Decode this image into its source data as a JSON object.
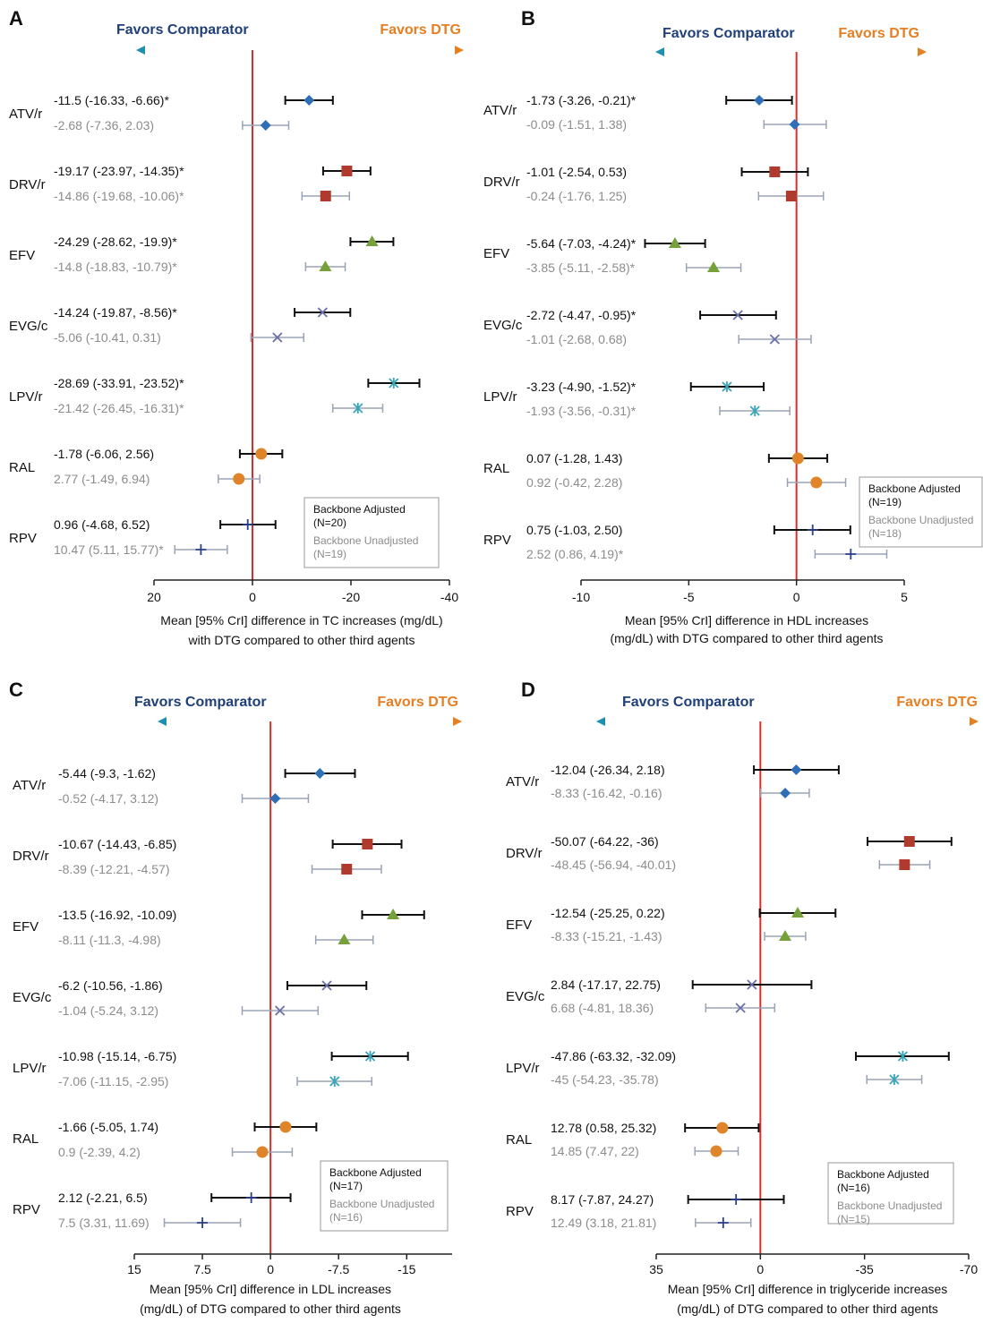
{
  "colors": {
    "favors_comparator": "#1f3f7a",
    "favors_dtg": "#e67e22",
    "ref_line": "#d32f2f",
    "axis": "#222222",
    "adjusted_text": "#111111",
    "unadjusted_text": "#8c8c8c",
    "adjusted_bar": "#111111",
    "unadjusted_bar": "#9aa3b5",
    "legend_border": "#999999"
  },
  "chart_data": [
    {
      "panel_label": "A",
      "type": "forest",
      "favors_left": "Favors Comparator",
      "favors_right": "Favors DTG",
      "xlim": [
        20,
        -40
      ],
      "xticks": [
        20,
        0,
        -20,
        -40
      ],
      "xtick_labels": [
        "20",
        "0",
        "-20",
        "-40"
      ],
      "xlabel_line1": "Mean [95% CrI] difference in TC increases (mg/dL)",
      "xlabel_line2": "with DTG compared to other third agents",
      "legend": {
        "adjusted_label": "Backbone Adjusted",
        "adjusted_n": "(N=20)",
        "unadjusted_label": "Backbone Unadjusted",
        "unadjusted_n": "(N=19)"
      },
      "rows": [
        {
          "drug": "ATV/r",
          "marker": "diamond",
          "color": "#2e6fb8",
          "adjusted": {
            "est": -11.5,
            "lo": -16.33,
            "hi": -6.66,
            "label": "-11.5 (-16.33, -6.66)*"
          },
          "unadjusted": {
            "est": -2.68,
            "lo": -7.36,
            "hi": 2.03,
            "label": "-2.68 (-7.36, 2.03)"
          }
        },
        {
          "drug": "DRV/r",
          "marker": "square",
          "color": "#b03a2e",
          "adjusted": {
            "est": -19.17,
            "lo": -23.97,
            "hi": -14.35,
            "label": "-19.17 (-23.97, -14.35)*"
          },
          "unadjusted": {
            "est": -14.86,
            "lo": -19.68,
            "hi": -10.06,
            "label": "-14.86 (-19.68, -10.06)*"
          }
        },
        {
          "drug": "EFV",
          "marker": "triangle",
          "color": "#76a03a",
          "adjusted": {
            "est": -24.29,
            "lo": -28.62,
            "hi": -19.9,
            "label": "-24.29 (-28.62, -19.9)*"
          },
          "unadjusted": {
            "est": -14.8,
            "lo": -18.83,
            "hi": -10.79,
            "label": "-14.8 (-18.83, -10.79)*"
          }
        },
        {
          "drug": "EVG/c",
          "marker": "x",
          "color": "#6a6fa8",
          "adjusted": {
            "est": -14.24,
            "lo": -19.87,
            "hi": -8.56,
            "label": "-14.24 (-19.87, -8.56)*"
          },
          "unadjusted": {
            "est": -5.06,
            "lo": -10.41,
            "hi": 0.31,
            "label": "-5.06 (-10.41, 0.31)"
          }
        },
        {
          "drug": "LPV/r",
          "marker": "star",
          "color": "#3aa5b8",
          "adjusted": {
            "est": -28.69,
            "lo": -33.91,
            "hi": -23.52,
            "label": "-28.69 (-33.91, -23.52)*"
          },
          "unadjusted": {
            "est": -21.42,
            "lo": -26.45,
            "hi": -16.31,
            "label": "-21.42 (-26.45, -16.31)*"
          }
        },
        {
          "drug": "RAL",
          "marker": "circle",
          "color": "#e0842a",
          "adjusted": {
            "est": -1.78,
            "lo": -6.06,
            "hi": 2.56,
            "label": "-1.78 (-6.06, 2.56)"
          },
          "unadjusted": {
            "est": 2.77,
            "lo": -1.49,
            "hi": 6.94,
            "label": "2.77 (-1.49, 6.94)"
          }
        },
        {
          "drug": "RPV",
          "marker": "plus",
          "color": "#2a3f8f",
          "adjusted": {
            "est": 0.96,
            "lo": -4.68,
            "hi": 6.52,
            "label": "0.96 (-4.68, 6.52)"
          },
          "unadjusted": {
            "est": 10.47,
            "lo": 5.11,
            "hi": 15.77,
            "label": "10.47 (5.11, 15.77)*"
          }
        }
      ]
    },
    {
      "panel_label": "B",
      "type": "forest",
      "favors_left": "Favors Comparator",
      "favors_right": "Favors DTG",
      "xlim": [
        -10,
        5
      ],
      "xticks": [
        -10,
        -5,
        0,
        5
      ],
      "xtick_labels": [
        "-10",
        "-5",
        "0",
        "5"
      ],
      "xlabel_line1": "Mean [95% CrI] difference in HDL increases",
      "xlabel_line2": "(mg/dL) with DTG compared to other third agents",
      "legend": {
        "adjusted_label": "Backbone Adjusted",
        "adjusted_n": "(N=19)",
        "unadjusted_label": "Backbone Unadjusted",
        "unadjusted_n": "(N=18)"
      },
      "rows": [
        {
          "drug": "ATV/r",
          "marker": "diamond",
          "color": "#2e6fb8",
          "adjusted": {
            "est": -1.73,
            "lo": -3.26,
            "hi": -0.21,
            "label": "-1.73 (-3.26, -0.21)*"
          },
          "unadjusted": {
            "est": -0.09,
            "lo": -1.51,
            "hi": 1.38,
            "label": "-0.09 (-1.51, 1.38)"
          }
        },
        {
          "drug": "DRV/r",
          "marker": "square",
          "color": "#b03a2e",
          "adjusted": {
            "est": -1.01,
            "lo": -2.54,
            "hi": 0.53,
            "label": "-1.01 (-2.54, 0.53)"
          },
          "unadjusted": {
            "est": -0.24,
            "lo": -1.76,
            "hi": 1.25,
            "label": "-0.24 (-1.76, 1.25)"
          }
        },
        {
          "drug": "EFV",
          "marker": "triangle",
          "color": "#76a03a",
          "adjusted": {
            "est": -5.64,
            "lo": -7.03,
            "hi": -4.24,
            "label": "-5.64 (-7.03, -4.24)*"
          },
          "unadjusted": {
            "est": -3.85,
            "lo": -5.11,
            "hi": -2.58,
            "label": "-3.85 (-5.11, -2.58)*"
          }
        },
        {
          "drug": "EVG/c",
          "marker": "x",
          "color": "#6a6fa8",
          "adjusted": {
            "est": -2.72,
            "lo": -4.47,
            "hi": -0.95,
            "label": "-2.72 (-4.47, -0.95)*"
          },
          "unadjusted": {
            "est": -1.01,
            "lo": -2.68,
            "hi": 0.68,
            "label": "-1.01 (-2.68, 0.68)"
          }
        },
        {
          "drug": "LPV/r",
          "marker": "star",
          "color": "#3aa5b8",
          "adjusted": {
            "est": -3.23,
            "lo": -4.9,
            "hi": -1.52,
            "label": "-3.23 (-4.90, -1.52)*"
          },
          "unadjusted": {
            "est": -1.93,
            "lo": -3.56,
            "hi": -0.31,
            "label": "-1.93 (-3.56, -0.31)*"
          }
        },
        {
          "drug": "RAL",
          "marker": "circle",
          "color": "#e0842a",
          "adjusted": {
            "est": 0.07,
            "lo": -1.28,
            "hi": 1.43,
            "label": "0.07 (-1.28, 1.43)"
          },
          "unadjusted": {
            "est": 0.92,
            "lo": -0.42,
            "hi": 2.28,
            "label": "0.92 (-0.42, 2.28)"
          }
        },
        {
          "drug": "RPV",
          "marker": "plus",
          "color": "#2a3f8f",
          "adjusted": {
            "est": 0.75,
            "lo": -1.03,
            "hi": 2.5,
            "label": "0.75 (-1.03, 2.50)"
          },
          "unadjusted": {
            "est": 2.52,
            "lo": 0.86,
            "hi": 4.19,
            "label": "2.52 (0.86, 4.19)*"
          }
        }
      ]
    },
    {
      "panel_label": "C",
      "type": "forest",
      "favors_left": "Favors Comparator",
      "favors_right": "Favors DTG",
      "xlim": [
        15,
        -20
      ],
      "xticks": [
        15,
        7.5,
        0,
        -7.5,
        -15
      ],
      "xtick_labels": [
        "15",
        "7.5",
        "0",
        "-7.5",
        "-15"
      ],
      "xlabel_line1": "Mean [95% CrI] difference in LDL increases",
      "xlabel_line2": "(mg/dL) of DTG compared to other third agents",
      "legend": {
        "adjusted_label": "Backbone Adjusted",
        "adjusted_n": "(N=17)",
        "unadjusted_label": "Backbone Unadjusted",
        "unadjusted_n": "(N=16)"
      },
      "rows": [
        {
          "drug": "ATV/r",
          "marker": "diamond",
          "color": "#2e6fb8",
          "adjusted": {
            "est": -5.44,
            "lo": -9.3,
            "hi": -1.62,
            "label": "-5.44 (-9.3, -1.62)"
          },
          "unadjusted": {
            "est": -0.52,
            "lo": -4.17,
            "hi": 3.12,
            "label": "-0.52 (-4.17, 3.12)"
          }
        },
        {
          "drug": "DRV/r",
          "marker": "square",
          "color": "#b03a2e",
          "adjusted": {
            "est": -10.67,
            "lo": -14.43,
            "hi": -6.85,
            "label": "-10.67 (-14.43, -6.85)"
          },
          "unadjusted": {
            "est": -8.39,
            "lo": -12.21,
            "hi": -4.57,
            "label": "-8.39 (-12.21, -4.57)"
          }
        },
        {
          "drug": "EFV",
          "marker": "triangle",
          "color": "#76a03a",
          "adjusted": {
            "est": -13.5,
            "lo": -16.92,
            "hi": -10.09,
            "label": "-13.5 (-16.92, -10.09)"
          },
          "unadjusted": {
            "est": -8.11,
            "lo": -11.3,
            "hi": -4.98,
            "label": "-8.11 (-11.3, -4.98)"
          }
        },
        {
          "drug": "EVG/c",
          "marker": "x",
          "color": "#6a6fa8",
          "adjusted": {
            "est": -6.2,
            "lo": -10.56,
            "hi": -1.86,
            "label": "-6.2 (-10.56, -1.86)"
          },
          "unadjusted": {
            "est": -1.04,
            "lo": -5.24,
            "hi": 3.12,
            "label": "-1.04 (-5.24, 3.12)"
          }
        },
        {
          "drug": "LPV/r",
          "marker": "star",
          "color": "#3aa5b8",
          "adjusted": {
            "est": -10.98,
            "lo": -15.14,
            "hi": -6.75,
            "label": "-10.98 (-15.14, -6.75)"
          },
          "unadjusted": {
            "est": -7.06,
            "lo": -11.15,
            "hi": -2.95,
            "label": "-7.06 (-11.15, -2.95)"
          }
        },
        {
          "drug": "RAL",
          "marker": "circle",
          "color": "#e0842a",
          "adjusted": {
            "est": -1.66,
            "lo": -5.05,
            "hi": 1.74,
            "label": "-1.66 (-5.05, 1.74)"
          },
          "unadjusted": {
            "est": 0.9,
            "lo": -2.39,
            "hi": 4.2,
            "label": "0.9 (-2.39, 4.2)"
          }
        },
        {
          "drug": "RPV",
          "marker": "plus",
          "color": "#2a3f8f",
          "adjusted": {
            "est": 2.12,
            "lo": -2.21,
            "hi": 6.5,
            "label": "2.12 (-2.21, 6.5)"
          },
          "unadjusted": {
            "est": 7.5,
            "lo": 3.31,
            "hi": 11.69,
            "label": "7.5 (3.31, 11.69)"
          }
        }
      ]
    },
    {
      "panel_label": "D",
      "type": "forest",
      "favors_left": "Favors Comparator",
      "favors_right": "Favors DTG",
      "xlim": [
        35,
        -70
      ],
      "xticks": [
        35,
        0,
        -35,
        -70
      ],
      "xtick_labels": [
        "35",
        "0",
        "-35",
        "-70"
      ],
      "xlabel_line1": "Mean [95% CrI] difference in triglyceride increases",
      "xlabel_line2": "(mg/dL) of DTG compared to other third agents",
      "legend": {
        "adjusted_label": "Backbone Adjusted",
        "adjusted_n": "(N=16)",
        "unadjusted_label": "Backbone Unadjusted",
        "unadjusted_n": "(N=15)"
      },
      "rows": [
        {
          "drug": "ATV/r",
          "marker": "diamond",
          "color": "#2e6fb8",
          "adjusted": {
            "est": -12.04,
            "lo": -26.34,
            "hi": 2.18,
            "label": "-12.04 (-26.34, 2.18)"
          },
          "unadjusted": {
            "est": -8.33,
            "lo": -16.42,
            "hi": -0.16,
            "label": "-8.33 (-16.42, -0.16)"
          }
        },
        {
          "drug": "DRV/r",
          "marker": "square",
          "color": "#b03a2e",
          "adjusted": {
            "est": -50.07,
            "lo": -64.22,
            "hi": -36,
            "label": "-50.07 (-64.22, -36)"
          },
          "unadjusted": {
            "est": -48.45,
            "lo": -56.94,
            "hi": -40.01,
            "label": "-48.45 (-56.94, -40.01)"
          }
        },
        {
          "drug": "EFV",
          "marker": "triangle",
          "color": "#76a03a",
          "adjusted": {
            "est": -12.54,
            "lo": -25.25,
            "hi": 0.22,
            "label": "-12.54 (-25.25, 0.22)"
          },
          "unadjusted": {
            "est": -8.33,
            "lo": -15.21,
            "hi": -1.43,
            "label": "-8.33 (-15.21, -1.43)"
          }
        },
        {
          "drug": "EVG/c",
          "marker": "x",
          "color": "#6a6fa8",
          "adjusted": {
            "est": 2.84,
            "lo": -17.17,
            "hi": 22.75,
            "label": "2.84 (-17.17, 22.75)"
          },
          "unadjusted": {
            "est": 6.68,
            "lo": -4.81,
            "hi": 18.36,
            "label": "6.68 (-4.81, 18.36)"
          }
        },
        {
          "drug": "LPV/r",
          "marker": "star",
          "color": "#3aa5b8",
          "adjusted": {
            "est": -47.86,
            "lo": -63.32,
            "hi": -32.09,
            "label": "-47.86 (-63.32, -32.09)"
          },
          "unadjusted": {
            "est": -45,
            "lo": -54.23,
            "hi": -35.78,
            "label": "-45 (-54.23, -35.78)"
          }
        },
        {
          "drug": "RAL",
          "marker": "circle",
          "color": "#e0842a",
          "adjusted": {
            "est": 12.78,
            "lo": 0.58,
            "hi": 25.32,
            "label": "12.78 (0.58, 25.32)"
          },
          "unadjusted": {
            "est": 14.85,
            "lo": 7.47,
            "hi": 22,
            "label": "14.85 (7.47, 22)"
          }
        },
        {
          "drug": "RPV",
          "marker": "plus",
          "color": "#2a3f8f",
          "adjusted": {
            "est": 8.17,
            "lo": -7.87,
            "hi": 24.27,
            "label": "8.17 (-7.87, 24.27)"
          },
          "unadjusted": {
            "est": 12.49,
            "lo": 3.18,
            "hi": 21.81,
            "label": "12.49 (3.18, 21.81)"
          }
        }
      ]
    }
  ]
}
